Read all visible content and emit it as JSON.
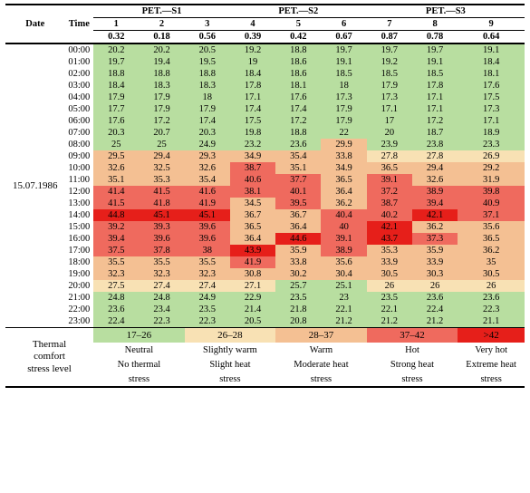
{
  "header": {
    "date_label": "Date",
    "time_label": "Time",
    "groups": [
      "PET.—S1",
      "PET.—S2",
      "PET.—S3"
    ],
    "cols": [
      "1",
      "2",
      "3",
      "4",
      "5",
      "6",
      "7",
      "8",
      "9"
    ],
    "coeffs": [
      "0.32",
      "0.18",
      "0.56",
      "0.39",
      "0.42",
      "0.67",
      "0.87",
      "0.78",
      "0.64"
    ]
  },
  "date_value": "15.07.1986",
  "times": [
    "00:00",
    "01:00",
    "02:00",
    "03:00",
    "04:00",
    "05:00",
    "06:00",
    "07:00",
    "08:00",
    "09:00",
    "10:00",
    "11:00",
    "12:00",
    "13:00",
    "14:00",
    "15:00",
    "16:00",
    "17:00",
    "18:00",
    "19:00",
    "20:00",
    "21:00",
    "22:00",
    "23:00"
  ],
  "values": [
    [
      20.2,
      20.2,
      20.5,
      19.2,
      18.8,
      19.7,
      19.7,
      19.7,
      19.1
    ],
    [
      19.7,
      19.4,
      19.5,
      19,
      18.6,
      19.1,
      19.2,
      19.1,
      18.4
    ],
    [
      18.8,
      18.8,
      18.8,
      18.4,
      18.6,
      18.5,
      18.5,
      18.5,
      18.1
    ],
    [
      18.4,
      18.3,
      18.3,
      17.8,
      18.1,
      18,
      17.9,
      17.8,
      17.6
    ],
    [
      17.9,
      17.9,
      18,
      17.1,
      17.6,
      17.3,
      17.3,
      17.1,
      17.5
    ],
    [
      17.7,
      17.9,
      17.9,
      17.4,
      17.4,
      17.9,
      17.1,
      17.1,
      17.3
    ],
    [
      17.6,
      17.2,
      17.4,
      17.5,
      17.2,
      17.9,
      17,
      17.2,
      17.1
    ],
    [
      20.3,
      20.7,
      20.3,
      19.8,
      18.8,
      22,
      20,
      18.7,
      18.9
    ],
    [
      25,
      25,
      24.9,
      23.2,
      23.6,
      29.9,
      23.9,
      23.8,
      23.3
    ],
    [
      29.5,
      29.4,
      29.3,
      34.9,
      35.4,
      33.8,
      27.8,
      27.8,
      26.9
    ],
    [
      32.6,
      32.5,
      32.6,
      38.7,
      35.1,
      34.9,
      36.5,
      29.4,
      29.2
    ],
    [
      35.1,
      35.3,
      35.4,
      40.6,
      37.7,
      36.5,
      39.1,
      32.6,
      31.9
    ],
    [
      41.4,
      41.5,
      41.6,
      38.1,
      40.1,
      36.4,
      37.2,
      38.9,
      39.8
    ],
    [
      41.5,
      41.8,
      41.9,
      34.5,
      39.5,
      36.2,
      38.7,
      39.4,
      40.9
    ],
    [
      44.8,
      45.1,
      45.1,
      36.7,
      36.7,
      40.4,
      40.2,
      42.1,
      37.1
    ],
    [
      39.2,
      39.3,
      39.6,
      36.5,
      36.4,
      40,
      42.1,
      36.2,
      35.6
    ],
    [
      39.4,
      39.6,
      39.6,
      36.4,
      44.6,
      39.1,
      43.7,
      37.3,
      36.5
    ],
    [
      37.5,
      37.8,
      38,
      43.9,
      35.9,
      38.9,
      35.3,
      35.9,
      36.2
    ],
    [
      35.5,
      35.5,
      35.5,
      41.9,
      33.8,
      35.6,
      33.9,
      33.9,
      35.0
    ],
    [
      32.3,
      32.3,
      32.3,
      30.8,
      30.2,
      30.4,
      30.5,
      30.3,
      30.5
    ],
    [
      27.5,
      27.4,
      27.4,
      27.1,
      25.7,
      25.1,
      26,
      26,
      26
    ],
    [
      24.8,
      24.8,
      24.9,
      22.9,
      23.5,
      23,
      23.5,
      23.6,
      23.6
    ],
    [
      23.6,
      23.4,
      23.5,
      21.4,
      21.8,
      22.1,
      22.1,
      22.4,
      22.3
    ],
    [
      22.4,
      22.3,
      22.3,
      20.5,
      20.8,
      21.2,
      21.2,
      21.2,
      21.1
    ]
  ],
  "legend": {
    "title_lines": [
      "Thermal",
      "comfort",
      "stress level"
    ],
    "bands": [
      {
        "range": "17–26",
        "color": "#b8dea0",
        "lines": [
          "Neutral",
          "No thermal",
          "stress"
        ]
      },
      {
        "range": "26–28",
        "color": "#f8e1b4",
        "lines": [
          "Slightly warm",
          "Slight heat",
          "stress"
        ]
      },
      {
        "range": "28–37",
        "color": "#f4c093",
        "lines": [
          "Warm",
          "Moderate heat",
          "stress"
        ]
      },
      {
        "range": "37–42",
        "color": "#ef6a5e",
        "lines": [
          "Hot",
          "Strong heat",
          "stress"
        ]
      },
      {
        "range": ">42",
        "color": "#e61f1a",
        "lines": [
          "Very hot",
          "Extreme heat",
          "stress"
        ]
      }
    ]
  },
  "palette": {
    "breaks": [
      17,
      26,
      28,
      37,
      42
    ],
    "colors": [
      "#b8dea0",
      "#f8e1b4",
      "#f4c093",
      "#ef6a5e",
      "#e61f1a"
    ]
  }
}
